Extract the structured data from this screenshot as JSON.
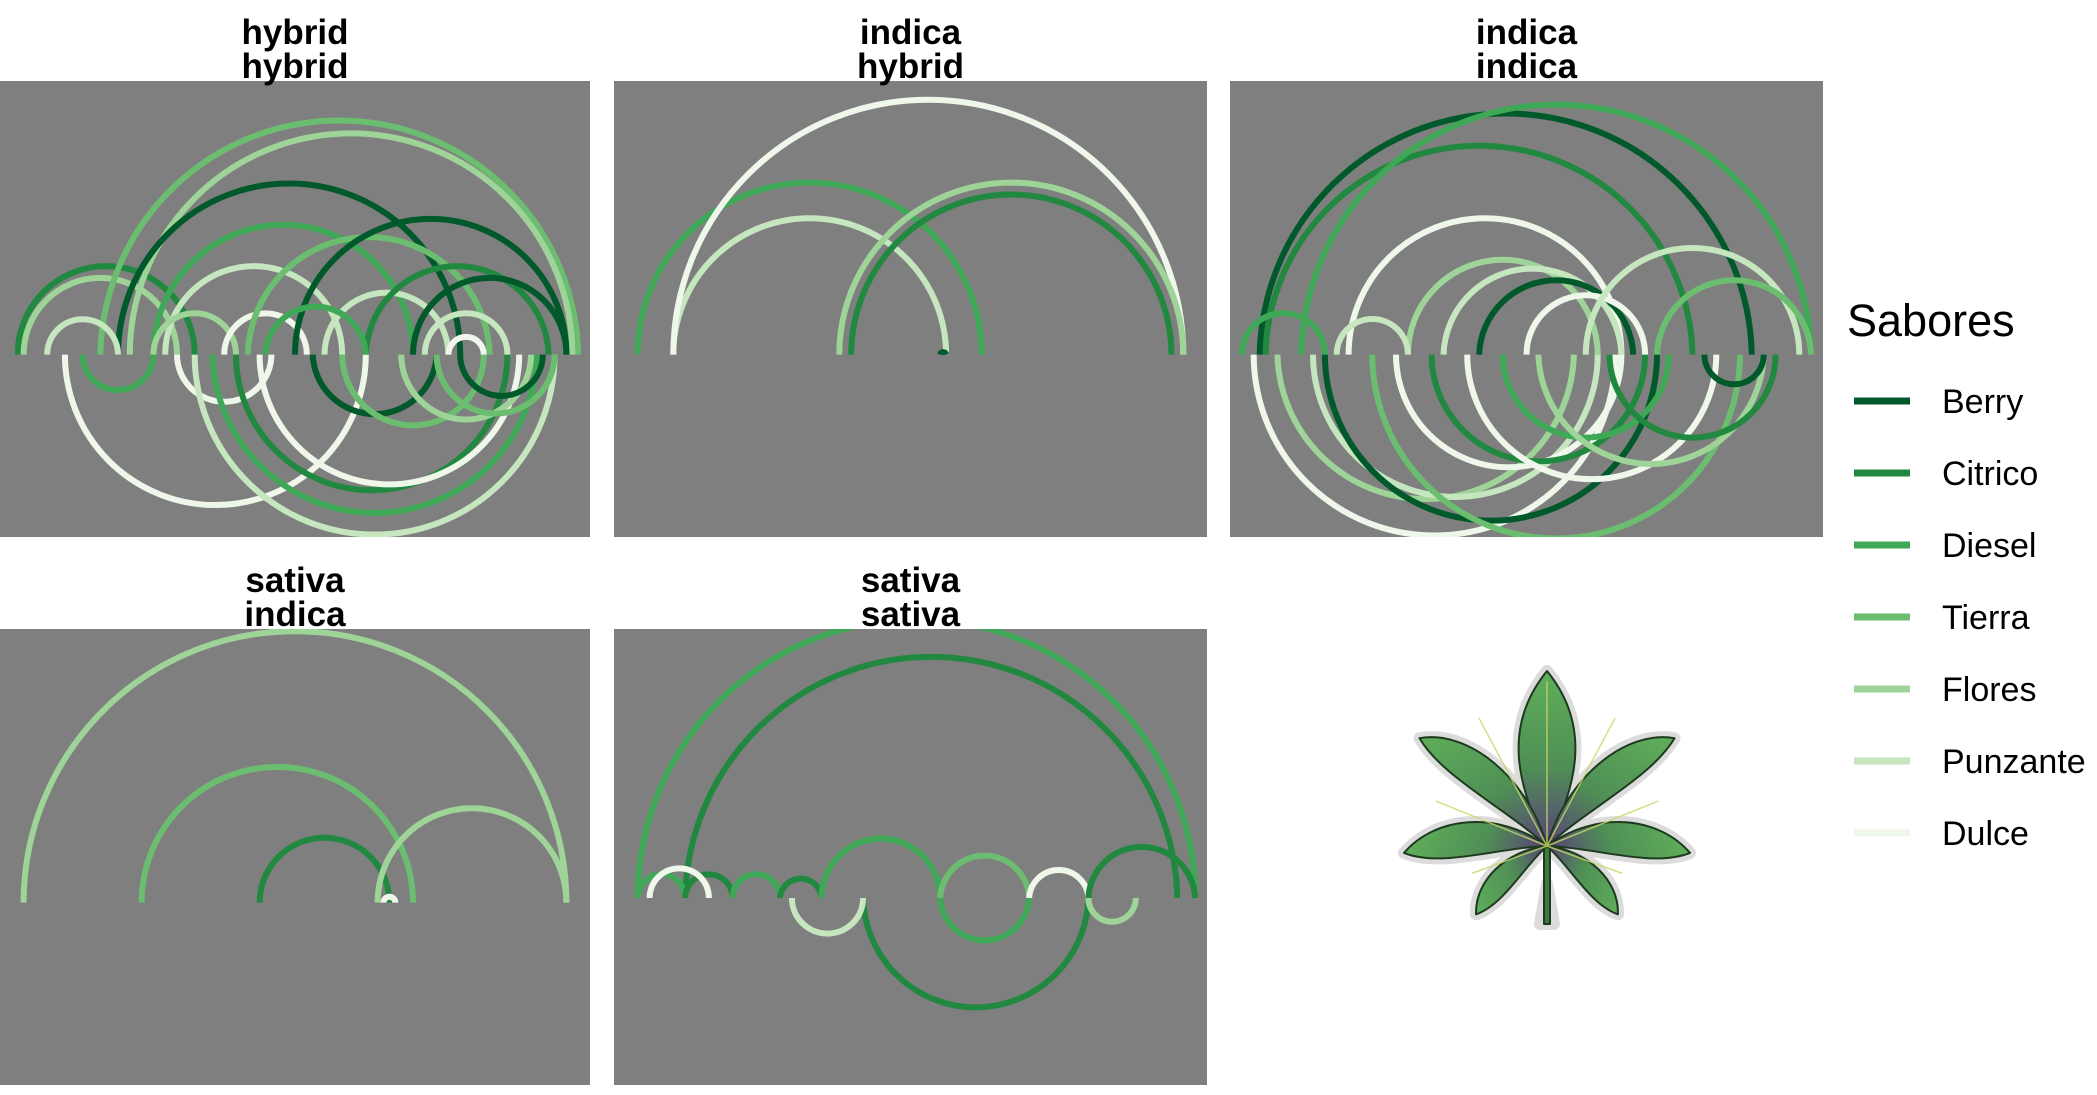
{
  "colors": {
    "panel_background": "#7f7f7f",
    "page_background": "#ffffff",
    "Berry": "#00592b",
    "Citrico": "#21883f",
    "Diesel": "#3fa857",
    "Tierra": "#6bbe6f",
    "Flores": "#9ed498",
    "Punzante": "#c5e6bf",
    "Dulce": "#eef7ea"
  },
  "chart_data": {
    "type": "arc",
    "legend": {
      "title": "Sabores",
      "position": "right",
      "items": [
        "Berry",
        "Citrico",
        "Diesel",
        "Tierra",
        "Flores",
        "Punzante",
        "Dulce"
      ]
    },
    "panels": [
      {
        "strip": [
          "hybrid",
          "hybrid"
        ],
        "arcs": [
          {
            "a": 0.03,
            "b": 0.33,
            "up": true,
            "flavor": "Citrico"
          },
          {
            "a": 0.04,
            "b": 0.3,
            "up": true,
            "flavor": "Flores"
          },
          {
            "a": 0.11,
            "b": 0.62,
            "up": false,
            "flavor": "Dulce"
          },
          {
            "a": 0.17,
            "b": 0.98,
            "up": true,
            "flavor": "Tierra"
          },
          {
            "a": 0.22,
            "b": 0.97,
            "up": true,
            "flavor": "Flores"
          },
          {
            "a": 0.2,
            "b": 0.78,
            "up": true,
            "flavor": "Berry"
          },
          {
            "a": 0.26,
            "b": 0.7,
            "up": true,
            "flavor": "Diesel"
          },
          {
            "a": 0.28,
            "b": 0.58,
            "up": true,
            "flavor": "Punzante"
          },
          {
            "a": 0.3,
            "b": 0.46,
            "up": false,
            "flavor": "Dulce"
          },
          {
            "a": 0.26,
            "b": 0.4,
            "up": true,
            "flavor": "Flores"
          },
          {
            "a": 0.33,
            "b": 0.94,
            "up": false,
            "flavor": "Punzante"
          },
          {
            "a": 0.36,
            "b": 0.91,
            "up": false,
            "flavor": "Diesel"
          },
          {
            "a": 0.38,
            "b": 0.52,
            "up": true,
            "flavor": "Dulce"
          },
          {
            "a": 0.4,
            "b": 0.86,
            "up": false,
            "flavor": "Citrico"
          },
          {
            "a": 0.42,
            "b": 0.83,
            "up": true,
            "flavor": "Tierra"
          },
          {
            "a": 0.44,
            "b": 0.88,
            "up": false,
            "flavor": "Dulce"
          },
          {
            "a": 0.5,
            "b": 0.96,
            "up": true,
            "flavor": "Berry"
          },
          {
            "a": 0.53,
            "b": 0.74,
            "up": false,
            "flavor": "Berry"
          },
          {
            "a": 0.55,
            "b": 0.76,
            "up": true,
            "flavor": "Punzante"
          },
          {
            "a": 0.58,
            "b": 0.82,
            "up": false,
            "flavor": "Tierra"
          },
          {
            "a": 0.62,
            "b": 0.93,
            "up": true,
            "flavor": "Citrico"
          },
          {
            "a": 0.68,
            "b": 0.9,
            "up": false,
            "flavor": "Flores"
          },
          {
            "a": 0.7,
            "b": 0.96,
            "up": true,
            "flavor": "Berry"
          },
          {
            "a": 0.72,
            "b": 0.86,
            "up": true,
            "flavor": "Punzante"
          },
          {
            "a": 0.74,
            "b": 0.94,
            "up": false,
            "flavor": "Tierra"
          },
          {
            "a": 0.76,
            "b": 0.82,
            "up": true,
            "flavor": "Dulce"
          },
          {
            "a": 0.78,
            "b": 0.92,
            "up": false,
            "flavor": "Berry"
          },
          {
            "a": 0.08,
            "b": 0.2,
            "up": true,
            "flavor": "Punzante"
          },
          {
            "a": 0.14,
            "b": 0.26,
            "up": false,
            "flavor": "Diesel"
          },
          {
            "a": 0.45,
            "b": 0.62,
            "up": true,
            "flavor": "Diesel"
          }
        ]
      },
      {
        "strip": [
          "indica",
          "hybrid"
        ],
        "arcs": [
          {
            "a": 0.04,
            "b": 0.62,
            "up": true,
            "flavor": "Diesel"
          },
          {
            "a": 0.1,
            "b": 0.56,
            "up": true,
            "flavor": "Punzante"
          },
          {
            "a": 0.1,
            "b": 0.96,
            "up": true,
            "flavor": "Dulce"
          },
          {
            "a": 0.38,
            "b": 0.96,
            "up": true,
            "flavor": "Flores"
          },
          {
            "a": 0.4,
            "b": 0.94,
            "up": true,
            "flavor": "Citrico"
          },
          {
            "a": 0.55,
            "b": 0.56,
            "up": true,
            "flavor": "Berry"
          }
        ]
      },
      {
        "strip": [
          "indica",
          "indica"
        ],
        "arcs": [
          {
            "a": 0.05,
            "b": 0.88,
            "up": true,
            "flavor": "Berry"
          },
          {
            "a": 0.04,
            "b": 0.65,
            "up": false,
            "flavor": "Dulce"
          },
          {
            "a": 0.06,
            "b": 0.78,
            "up": true,
            "flavor": "Citrico"
          },
          {
            "a": 0.08,
            "b": 0.58,
            "up": false,
            "flavor": "Flores"
          },
          {
            "a": 0.12,
            "b": 0.98,
            "up": true,
            "flavor": "Diesel"
          },
          {
            "a": 0.14,
            "b": 0.62,
            "up": false,
            "flavor": "Punzante"
          },
          {
            "a": 0.16,
            "b": 0.72,
            "up": false,
            "flavor": "Berry"
          },
          {
            "a": 0.2,
            "b": 0.66,
            "up": true,
            "flavor": "Dulce"
          },
          {
            "a": 0.24,
            "b": 0.86,
            "up": false,
            "flavor": "Tierra"
          },
          {
            "a": 0.28,
            "b": 0.66,
            "up": false,
            "flavor": "Dulce"
          },
          {
            "a": 0.3,
            "b": 0.62,
            "up": true,
            "flavor": "Flores"
          },
          {
            "a": 0.34,
            "b": 0.7,
            "up": false,
            "flavor": "Citrico"
          },
          {
            "a": 0.36,
            "b": 0.66,
            "up": true,
            "flavor": "Punzante"
          },
          {
            "a": 0.4,
            "b": 0.82,
            "up": false,
            "flavor": "Dulce"
          },
          {
            "a": 0.42,
            "b": 0.68,
            "up": true,
            "flavor": "Berry"
          },
          {
            "a": 0.46,
            "b": 0.74,
            "up": false,
            "flavor": "Diesel"
          },
          {
            "a": 0.5,
            "b": 0.7,
            "up": true,
            "flavor": "Dulce"
          },
          {
            "a": 0.52,
            "b": 0.9,
            "up": false,
            "flavor": "Flores"
          },
          {
            "a": 0.6,
            "b": 0.96,
            "up": true,
            "flavor": "Punzante"
          },
          {
            "a": 0.64,
            "b": 0.92,
            "up": false,
            "flavor": "Citrico"
          },
          {
            "a": 0.72,
            "b": 0.98,
            "up": true,
            "flavor": "Tierra"
          },
          {
            "a": 0.8,
            "b": 0.9,
            "up": false,
            "flavor": "Berry"
          },
          {
            "a": 0.02,
            "b": 0.16,
            "up": true,
            "flavor": "Diesel"
          },
          {
            "a": 0.18,
            "b": 0.3,
            "up": true,
            "flavor": "Punzante"
          }
        ]
      },
      {
        "strip": [
          "sativa",
          "indica"
        ],
        "arcs": [
          {
            "a": 0.04,
            "b": 0.96,
            "up": true,
            "flavor": "Flores"
          },
          {
            "a": 0.24,
            "b": 0.7,
            "up": true,
            "flavor": "Tierra"
          },
          {
            "a": 0.44,
            "b": 0.66,
            "up": true,
            "flavor": "Citrico"
          },
          {
            "a": 0.64,
            "b": 0.96,
            "up": true,
            "flavor": "Flores"
          },
          {
            "a": 0.65,
            "b": 0.67,
            "up": true,
            "flavor": "Dulce"
          }
        ]
      },
      {
        "strip": [
          "sativa",
          "sativa"
        ],
        "arcs": [
          {
            "a": 0.04,
            "b": 0.98,
            "up": true,
            "flavor": "Diesel"
          },
          {
            "a": 0.12,
            "b": 0.95,
            "up": true,
            "flavor": "Citrico"
          },
          {
            "a": 0.04,
            "b": 0.12,
            "up": true,
            "flavor": "Diesel"
          },
          {
            "a": 0.12,
            "b": 0.2,
            "up": true,
            "flavor": "Citrico"
          },
          {
            "a": 0.2,
            "b": 0.28,
            "up": true,
            "flavor": "Diesel"
          },
          {
            "a": 0.28,
            "b": 0.35,
            "up": true,
            "flavor": "Citrico"
          },
          {
            "a": 0.35,
            "b": 0.55,
            "up": true,
            "flavor": "Diesel"
          },
          {
            "a": 0.55,
            "b": 0.7,
            "up": true,
            "flavor": "Tierra"
          },
          {
            "a": 0.7,
            "b": 0.8,
            "up": true,
            "flavor": "Dulce"
          },
          {
            "a": 0.8,
            "b": 0.98,
            "up": true,
            "flavor": "Citrico"
          },
          {
            "a": 0.42,
            "b": 0.8,
            "up": false,
            "flavor": "Citrico"
          },
          {
            "a": 0.55,
            "b": 0.7,
            "up": false,
            "flavor": "Diesel"
          },
          {
            "a": 0.8,
            "b": 0.88,
            "up": false,
            "flavor": "Flores"
          },
          {
            "a": 0.06,
            "b": 0.16,
            "up": true,
            "flavor": "Dulce"
          },
          {
            "a": 0.3,
            "b": 0.42,
            "up": false,
            "flavor": "Punzante"
          }
        ]
      }
    ]
  }
}
